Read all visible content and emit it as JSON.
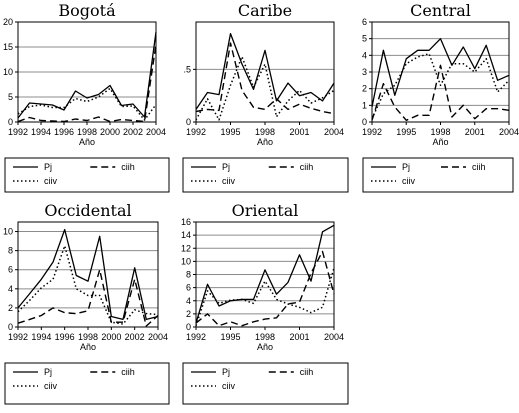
{
  "chart_data": [
    {
      "type": "line",
      "title": "Bogotá",
      "xlabel": "Año",
      "ylim": [
        0,
        20
      ],
      "yticks": [
        "0",
        "5",
        "10",
        "15",
        "20"
      ],
      "xticks": [
        "1992",
        "1994",
        "1996",
        "1998",
        "2000",
        "2002",
        "2004"
      ],
      "x": [
        1992,
        1993,
        1994,
        1995,
        1996,
        1997,
        1998,
        1999,
        2000,
        2001,
        2002,
        2003,
        2004
      ],
      "series": [
        {
          "name": "Pj",
          "style": "solid",
          "values": [
            0.8,
            3.8,
            3.6,
            3.4,
            2.4,
            6.2,
            4.8,
            5.5,
            7.3,
            3.3,
            3.6,
            1.0,
            18.0
          ]
        },
        {
          "name": "ciih",
          "style": "dash",
          "values": [
            0.1,
            0.9,
            0.3,
            0.2,
            0.1,
            0.6,
            0.3,
            1.0,
            0.1,
            0.5,
            0.3,
            0.1,
            15.5
          ]
        },
        {
          "name": "ciiv",
          "style": "dot",
          "values": [
            1.6,
            3.1,
            3.4,
            2.9,
            2.9,
            4.7,
            4.1,
            5.0,
            6.7,
            3.1,
            3.2,
            0.4,
            3.5
          ]
        }
      ],
      "legend": [
        "Pj",
        "ciih",
        "ciiv"
      ]
    },
    {
      "type": "line",
      "title": "Caribe",
      "xlabel": "Año",
      "ylim": [
        0,
        0.95
      ],
      "yticks": [
        "0",
        ".5",
        "1"
      ],
      "xticks": [
        "1992",
        "1995",
        "1998",
        "2001",
        "2004"
      ],
      "x": [
        1992,
        1993,
        1994,
        1995,
        1996,
        1997,
        1998,
        1999,
        2000,
        2001,
        2002,
        2003,
        2004
      ],
      "series": [
        {
          "name": "Pj",
          "style": "solid",
          "values": [
            0.12,
            0.28,
            0.26,
            0.84,
            0.55,
            0.31,
            0.68,
            0.2,
            0.37,
            0.25,
            0.28,
            0.2,
            0.37
          ]
        },
        {
          "name": "ciih",
          "style": "dash",
          "values": [
            0.1,
            0.12,
            0.11,
            0.75,
            0.3,
            0.14,
            0.12,
            0.22,
            0.12,
            0.17,
            0.13,
            0.1,
            0.08
          ]
        },
        {
          "name": "ciiv",
          "style": "dot",
          "values": [
            0.02,
            0.22,
            0.02,
            0.35,
            0.62,
            0.33,
            0.55,
            0.05,
            0.2,
            0.3,
            0.18,
            0.23,
            0.3
          ]
        }
      ],
      "legend": [
        "Pj",
        "ciih",
        "ciiv"
      ]
    },
    {
      "type": "line",
      "title": "Central",
      "xlabel": "Año",
      "ylim": [
        0,
        6
      ],
      "yticks": [
        "0",
        "1",
        "2",
        "3",
        "4",
        "5",
        "6"
      ],
      "xticks": [
        "1992",
        "1995",
        "1998",
        "2001",
        "2004"
      ],
      "x": [
        1992,
        1993,
        1994,
        1995,
        1996,
        1997,
        1998,
        1999,
        2000,
        2001,
        2002,
        2003,
        2004
      ],
      "series": [
        {
          "name": "Pj",
          "style": "solid",
          "values": [
            0.9,
            4.3,
            1.6,
            3.8,
            4.3,
            4.3,
            5.0,
            3.4,
            4.5,
            3.2,
            4.6,
            2.5,
            2.8
          ]
        },
        {
          "name": "ciih",
          "style": "dash",
          "values": [
            0.1,
            2.3,
            0.9,
            0.1,
            0.4,
            0.4,
            3.4,
            0.3,
            1.0,
            0.2,
            0.8,
            0.8,
            0.7
          ]
        },
        {
          "name": "ciiv",
          "style": "dot",
          "values": [
            0.2,
            1.7,
            2.2,
            3.5,
            3.9,
            4.1,
            2.2,
            3.5,
            3.5,
            3.0,
            3.8,
            1.8,
            2.5
          ]
        }
      ],
      "legend": [
        "Pj",
        "ciih",
        "ciiv"
      ]
    },
    {
      "type": "line",
      "title": "Occidental",
      "xlabel": "Año",
      "ylim": [
        0,
        11
      ],
      "yticks": [
        "0",
        "2",
        "4",
        "6",
        "8",
        "10"
      ],
      "xticks": [
        "1992",
        "1994",
        "1996",
        "1998",
        "2000",
        "2002",
        "2004"
      ],
      "x": [
        1992,
        1993,
        1994,
        1995,
        1996,
        1997,
        1998,
        1999,
        2000,
        2001,
        2002,
        2003,
        2004
      ],
      "series": [
        {
          "name": "Pj",
          "style": "solid",
          "values": [
            2.0,
            3.5,
            5.0,
            6.8,
            10.2,
            5.4,
            4.8,
            9.5,
            1.1,
            0.8,
            6.2,
            0.8,
            1.1
          ]
        },
        {
          "name": "ciih",
          "style": "dash",
          "values": [
            0.4,
            0.8,
            1.2,
            2.0,
            1.5,
            1.4,
            1.7,
            6.0,
            0.5,
            0.5,
            5.0,
            0.1,
            1.2
          ]
        },
        {
          "name": "ciiv",
          "style": "dot",
          "values": [
            1.6,
            2.8,
            4.1,
            5.0,
            8.5,
            4.0,
            3.3,
            3.3,
            0.5,
            0.3,
            1.8,
            1.4,
            1.3
          ]
        }
      ],
      "legend": [
        "Pj",
        "ciih",
        "ciiv"
      ]
    },
    {
      "type": "line",
      "title": "Oriental",
      "xlabel": "Año",
      "ylim": [
        0,
        16
      ],
      "yticks": [
        "0",
        "2",
        "4",
        "6",
        "8",
        "10",
        "12",
        "14",
        "16"
      ],
      "xticks": [
        "1992",
        "1995",
        "1998",
        "2001",
        "2004"
      ],
      "x": [
        1992,
        1993,
        1994,
        1995,
        1996,
        1997,
        1998,
        1999,
        2000,
        2001,
        2002,
        2003,
        2004
      ],
      "series": [
        {
          "name": "Pj",
          "style": "solid",
          "values": [
            0.6,
            6.5,
            3.2,
            4.0,
            4.2,
            4.2,
            8.7,
            5.0,
            6.8,
            11.0,
            7.0,
            14.5,
            15.5
          ]
        },
        {
          "name": "ciih",
          "style": "dash",
          "values": [
            0.6,
            2.0,
            0.2,
            0.8,
            0.2,
            0.8,
            1.2,
            1.4,
            3.5,
            3.8,
            8.2,
            11.5,
            5.0
          ]
        },
        {
          "name": "ciiv",
          "style": "dot",
          "values": [
            0.2,
            5.5,
            3.6,
            4.1,
            4.2,
            3.6,
            7.0,
            4.2,
            3.5,
            3.0,
            2.2,
            3.0,
            9.0
          ]
        }
      ],
      "legend": [
        "Pj",
        "ciih",
        "ciiv"
      ]
    }
  ]
}
